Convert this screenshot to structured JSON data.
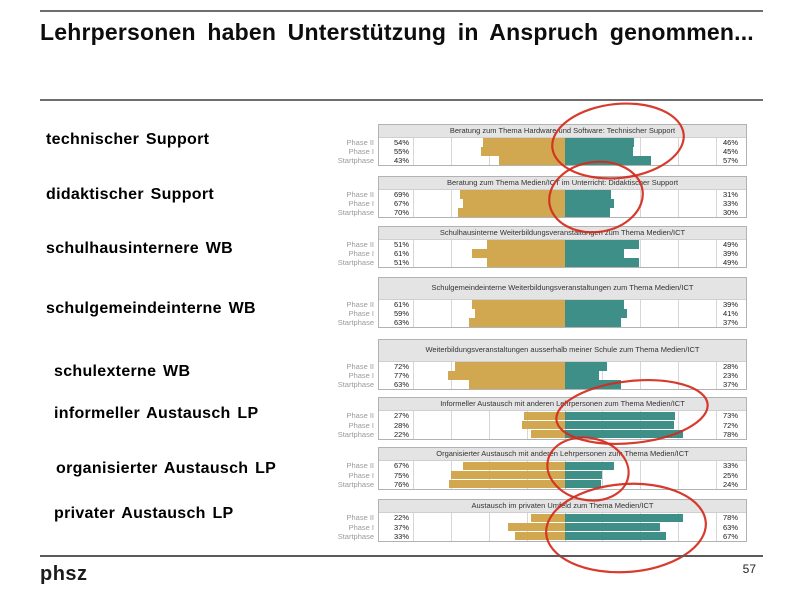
{
  "slide": {
    "title": "Lehrpersonen haben Unterstützung in Anspruch genommen...",
    "logo": "phsz",
    "page_number": "57"
  },
  "colors": {
    "bar_left": "#d1a850",
    "bar_right": "#3e8f88",
    "annotation": "#d42a1c",
    "title_band": "#e4e4e4"
  },
  "chart_data": [
    {
      "type": "bar",
      "orientation": "horizontal-diverging",
      "label": "technischer Support",
      "title": "Beratung zum Thema Hardware und Software: Technischer Support",
      "categories": [
        "Phase II",
        "Phase I",
        "Startphase"
      ],
      "series": [
        {
          "side": "left",
          "values": [
            54,
            55,
            43
          ]
        },
        {
          "side": "right",
          "values": [
            46,
            45,
            57
          ]
        }
      ],
      "circled": true
    },
    {
      "type": "bar",
      "orientation": "horizontal-diverging",
      "label": "didaktischer Support",
      "title": "Beratung zum Thema Medien/ICT im Unterricht: Didaktischer Support",
      "categories": [
        "Phase II",
        "Phase I",
        "Startphase"
      ],
      "series": [
        {
          "side": "left",
          "values": [
            69,
            67,
            70
          ]
        },
        {
          "side": "right",
          "values": [
            31,
            33,
            30
          ]
        }
      ],
      "circled": true
    },
    {
      "type": "bar",
      "orientation": "horizontal-diverging",
      "label": "schulhausinternere WB",
      "title": "Schulhausinterne Weiterbildungsveranstaltungen zum Thema Medien/ICT",
      "categories": [
        "Phase II",
        "Phase I",
        "Startphase"
      ],
      "series": [
        {
          "side": "left",
          "values": [
            51,
            61,
            51
          ]
        },
        {
          "side": "right",
          "values": [
            49,
            39,
            49
          ]
        }
      ],
      "circled": false
    },
    {
      "type": "bar",
      "orientation": "horizontal-diverging",
      "label": "schulgemeindeinterne WB",
      "title": "Schulgemeindeinterne Weiterbildungsveranstaltungen zum Thema Medien/ICT",
      "categories": [
        "Phase II",
        "Phase I",
        "Startphase"
      ],
      "series": [
        {
          "side": "left",
          "values": [
            61,
            59,
            63
          ]
        },
        {
          "side": "right",
          "values": [
            39,
            41,
            37
          ]
        }
      ],
      "circled": false
    },
    {
      "type": "bar",
      "orientation": "horizontal-diverging",
      "label": "schulexterne WB",
      "title": "Weiterbildungsveranstaltungen ausserhalb meiner Schule zum Thema Medien/ICT",
      "categories": [
        "Phase II",
        "Phase I",
        "Startphase"
      ],
      "series": [
        {
          "side": "left",
          "values": [
            72,
            77,
            63
          ]
        },
        {
          "side": "right",
          "values": [
            28,
            23,
            37
          ]
        }
      ],
      "circled": false
    },
    {
      "type": "bar",
      "orientation": "horizontal-diverging",
      "label": "informeller Austausch LP",
      "title": "Informeller Austausch mit anderen Lehrpersonen zum Thema Medien/ICT",
      "categories": [
        "Phase II",
        "Phase I",
        "Startphase"
      ],
      "series": [
        {
          "side": "left",
          "values": [
            27,
            28,
            22
          ]
        },
        {
          "side": "right",
          "values": [
            73,
            72,
            78
          ]
        }
      ],
      "circled": true
    },
    {
      "type": "bar",
      "orientation": "horizontal-diverging",
      "label": "organisierter Austausch LP",
      "title": "Organisierter Austausch mit anderen Lehrpersonen zum Thema Medien/ICT",
      "categories": [
        "Phase II",
        "Phase I",
        "Startphase"
      ],
      "series": [
        {
          "side": "left",
          "values": [
            67,
            75,
            76
          ]
        },
        {
          "side": "right",
          "values": [
            33,
            25,
            24
          ]
        }
      ],
      "circled": true
    },
    {
      "type": "bar",
      "orientation": "horizontal-diverging",
      "label": "privater Austausch LP",
      "title": "Austausch im privaten Umfeld zum Thema Medien/ICT",
      "categories": [
        "Phase II",
        "Phase I",
        "Startphase"
      ],
      "series": [
        {
          "side": "left",
          "values": [
            22,
            37,
            33
          ]
        },
        {
          "side": "right",
          "values": [
            78,
            63,
            67
          ]
        }
      ],
      "circled": true
    }
  ]
}
